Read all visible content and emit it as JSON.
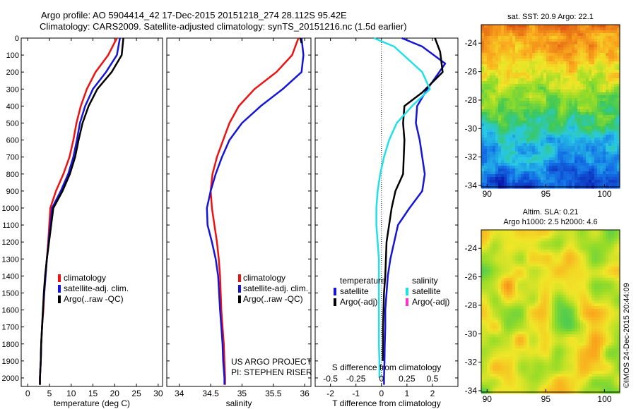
{
  "header": {
    "title_line1": "Argo profile: AO 5904414_42 17-Dec-2015 20151218_274 28.112S 95.42E",
    "title_line2": "Climatology: CARS2009. Satellite-adjusted climatology: synTS_20151216.nc (1.5d earlier)"
  },
  "credit": "©IMOS 24-Dec-2015 20:44:09",
  "colors": {
    "climatology": "#ee1111",
    "satellite": "#1515d8",
    "argo": "#000000",
    "sat_s": "#22e0e8",
    "argo_s": "#ff33cc"
  },
  "chart_data": [
    {
      "type": "line",
      "panel": "temperature",
      "xlabel": "temperature (deg C)",
      "ylabel": "",
      "xlim": [
        -1.5,
        31
      ],
      "ylim": [
        2050,
        0
      ],
      "xticks": [
        0,
        5,
        10,
        15,
        20,
        25,
        30
      ],
      "yticks": [
        0,
        100,
        200,
        300,
        400,
        500,
        600,
        700,
        800,
        900,
        1000,
        1100,
        1200,
        1300,
        1400,
        1500,
        1600,
        1700,
        1800,
        1900,
        2000
      ],
      "legend": {
        "placement": "lower-center",
        "entries": [
          "climatology",
          "satellite-adj. clim.",
          "Argo(..raw -QC)"
        ]
      },
      "series": [
        {
          "name": "climatology",
          "color": "#ee1111",
          "x": [
            20.5,
            18.5,
            15.6,
            13.6,
            12.2,
            11.2,
            10.5,
            9.6,
            8.2,
            6.5,
            5.2,
            4.7,
            4.4,
            4.1,
            3.8,
            3.6,
            3.3,
            3.1,
            3.0,
            2.8,
            2.8
          ],
          "y": [
            0,
            100,
            200,
            300,
            400,
            500,
            600,
            700,
            800,
            900,
            1000,
            1200,
            1300,
            1400,
            1500,
            1600,
            1700,
            1800,
            1900,
            2000,
            2040
          ]
        },
        {
          "name": "satellite-adj. clim.",
          "color": "#1515d8",
          "x": [
            21.2,
            20.5,
            18.0,
            15.0,
            13.2,
            12.0,
            11.3,
            10.5,
            9.3,
            7.6,
            5.6,
            4.8,
            4.4,
            4.1,
            3.8,
            3.5,
            3.3,
            3.1,
            3.0,
            2.8,
            2.8
          ],
          "y": [
            0,
            100,
            200,
            300,
            400,
            500,
            600,
            700,
            800,
            900,
            1000,
            1200,
            1300,
            1400,
            1500,
            1600,
            1700,
            1800,
            1900,
            2000,
            2040
          ]
        },
        {
          "name": "Argo(..raw -QC)",
          "color": "#000000",
          "x": [
            22.0,
            21.6,
            19.3,
            16.0,
            14.0,
            12.6,
            11.7,
            10.9,
            9.7,
            8.0,
            5.9,
            4.9,
            4.4,
            4.0,
            3.7,
            3.5,
            3.3,
            3.1,
            3.0,
            2.8,
            2.8
          ],
          "y": [
            0,
            100,
            200,
            300,
            400,
            500,
            600,
            700,
            800,
            900,
            1000,
            1200,
            1300,
            1400,
            1500,
            1600,
            1700,
            1800,
            1900,
            2000,
            2040
          ]
        }
      ]
    },
    {
      "type": "line",
      "panel": "salinity",
      "xlabel": "salinity",
      "xlim": [
        33.8,
        36.1
      ],
      "ylim": [
        2050,
        0
      ],
      "xticks": [
        34,
        34.5,
        35,
        35.5,
        36
      ],
      "legend": {
        "placement": "lower-center",
        "entries": [
          "climatology",
          "satellite-adj. clim.",
          "Argo(..raw -QC)"
        ]
      },
      "annotation": [
        "US ARGO PROJECT",
        "PI: STEPHEN RISER"
      ],
      "series": [
        {
          "name": "climatology",
          "color": "#ee1111",
          "x": [
            35.9,
            35.8,
            35.55,
            35.2,
            34.95,
            34.8,
            34.7,
            34.6,
            34.53,
            34.5,
            34.52,
            34.56,
            34.6,
            34.63,
            34.65,
            34.67,
            34.69,
            34.71,
            34.72,
            34.73,
            34.73
          ],
          "y": [
            0,
            100,
            200,
            300,
            400,
            500,
            600,
            700,
            800,
            900,
            1000,
            1100,
            1200,
            1300,
            1400,
            1600,
            1700,
            1800,
            1900,
            2000,
            2040
          ]
        },
        {
          "name": "satellite-adj. clim.",
          "color": "#1515d8",
          "x": [
            35.95,
            35.98,
            35.95,
            35.65,
            35.3,
            35.0,
            34.8,
            34.68,
            34.58,
            34.5,
            34.44,
            34.45,
            34.52,
            34.58,
            34.62,
            34.65,
            34.67,
            34.69,
            34.7,
            34.72,
            34.72
          ],
          "y": [
            0,
            100,
            200,
            300,
            400,
            500,
            600,
            700,
            800,
            900,
            1000,
            1100,
            1200,
            1300,
            1400,
            1600,
            1700,
            1800,
            1900,
            2000,
            2040
          ]
        },
        {
          "name": "Argo(..raw -QC)",
          "color": "#000000",
          "x": [
            35.93,
            35.95
          ],
          "y": [
            0,
            30
          ]
        }
      ]
    },
    {
      "type": "line",
      "panel": "difference",
      "xlabel": "T difference from climatology",
      "top_label": "S difference from climatology",
      "xlim": [
        -2.6,
        3.0
      ],
      "ylim": [
        2050,
        0
      ],
      "xticks": [
        -2,
        -1,
        0,
        1,
        2
      ],
      "top_ticks": [
        "-0.5",
        "-0.25",
        "0",
        "0.25",
        "0.5"
      ],
      "legend": {
        "placement": "upper-right",
        "groups": [
          "temperature",
          "salinity"
        ],
        "entries": [
          "satellite",
          "Argo(-adj)",
          "satellite",
          "Argo(-adj)"
        ]
      },
      "series": [
        {
          "name": "satellite",
          "color": "#1515d8",
          "x": [
            0.8,
            1.6,
            2.5,
            1.8,
            1.4,
            1.35,
            1.5,
            1.7,
            1.6,
            1.1,
            0.65,
            0.5,
            0.35,
            0.25,
            0.2,
            0.15,
            0.15,
            0.13,
            0.12,
            0.1,
            0.1
          ],
          "y": [
            0,
            50,
            150,
            300,
            400,
            500,
            600,
            800,
            900,
            1000,
            1100,
            1200,
            1300,
            1400,
            1500,
            1600,
            1700,
            1800,
            1900,
            2000,
            2040
          ]
        },
        {
          "name": "Argo(-adj)",
          "color": "#000000",
          "x": [
            2.1,
            2.3,
            2.4,
            1.6,
            0.9,
            0.85,
            0.9,
            0.85,
            0.55,
            0.4,
            0.3,
            0.2,
            0.15,
            0.1,
            0.08,
            0.06,
            0.06,
            0.05
          ],
          "y": [
            0,
            80,
            200,
            320,
            400,
            500,
            600,
            800,
            900,
            1000,
            1100,
            1200,
            1400,
            1500,
            1600,
            1700,
            1800,
            1900
          ]
        },
        {
          "name": "satellite",
          "color": "#22e0e8",
          "x": [
            -0.3,
            0.5,
            1.6,
            1.9,
            1.2,
            0.6,
            0.3,
            0.1,
            -0.05,
            -0.15,
            -0.2,
            -0.2,
            -0.15,
            -0.1,
            -0.1,
            -0.1,
            -0.1,
            -0.08,
            -0.08
          ],
          "y": [
            0,
            50,
            200,
            300,
            400,
            500,
            600,
            700,
            800,
            900,
            1000,
            1100,
            1200,
            1300,
            1500,
            1700,
            1800,
            1900,
            2000
          ]
        },
        {
          "name": "Argo(-adj)",
          "color": "#ff33cc",
          "x": [],
          "y": []
        }
      ]
    },
    {
      "type": "heatmap",
      "panel": "sst",
      "title": "sat. SST: 20.9  Argo: 22.1",
      "xticks": [
        90,
        95,
        100
      ],
      "yticks": [
        -24,
        -26,
        -28,
        -30,
        -32,
        -34
      ],
      "xlim": [
        89.5,
        101.3
      ],
      "ylim": [
        -34.1,
        -22.7
      ]
    },
    {
      "type": "heatmap",
      "panel": "sla",
      "title": "Altim. SLA: 0.21",
      "subtitle": "Argo h1000: 2.5 h2000: 4.6",
      "xticks": [
        90,
        95,
        100
      ],
      "yticks": [
        -24,
        -26,
        -28,
        -30,
        -32,
        -34
      ],
      "xlim": [
        89.5,
        101.3
      ],
      "ylim": [
        -34.1,
        -22.7
      ]
    }
  ]
}
